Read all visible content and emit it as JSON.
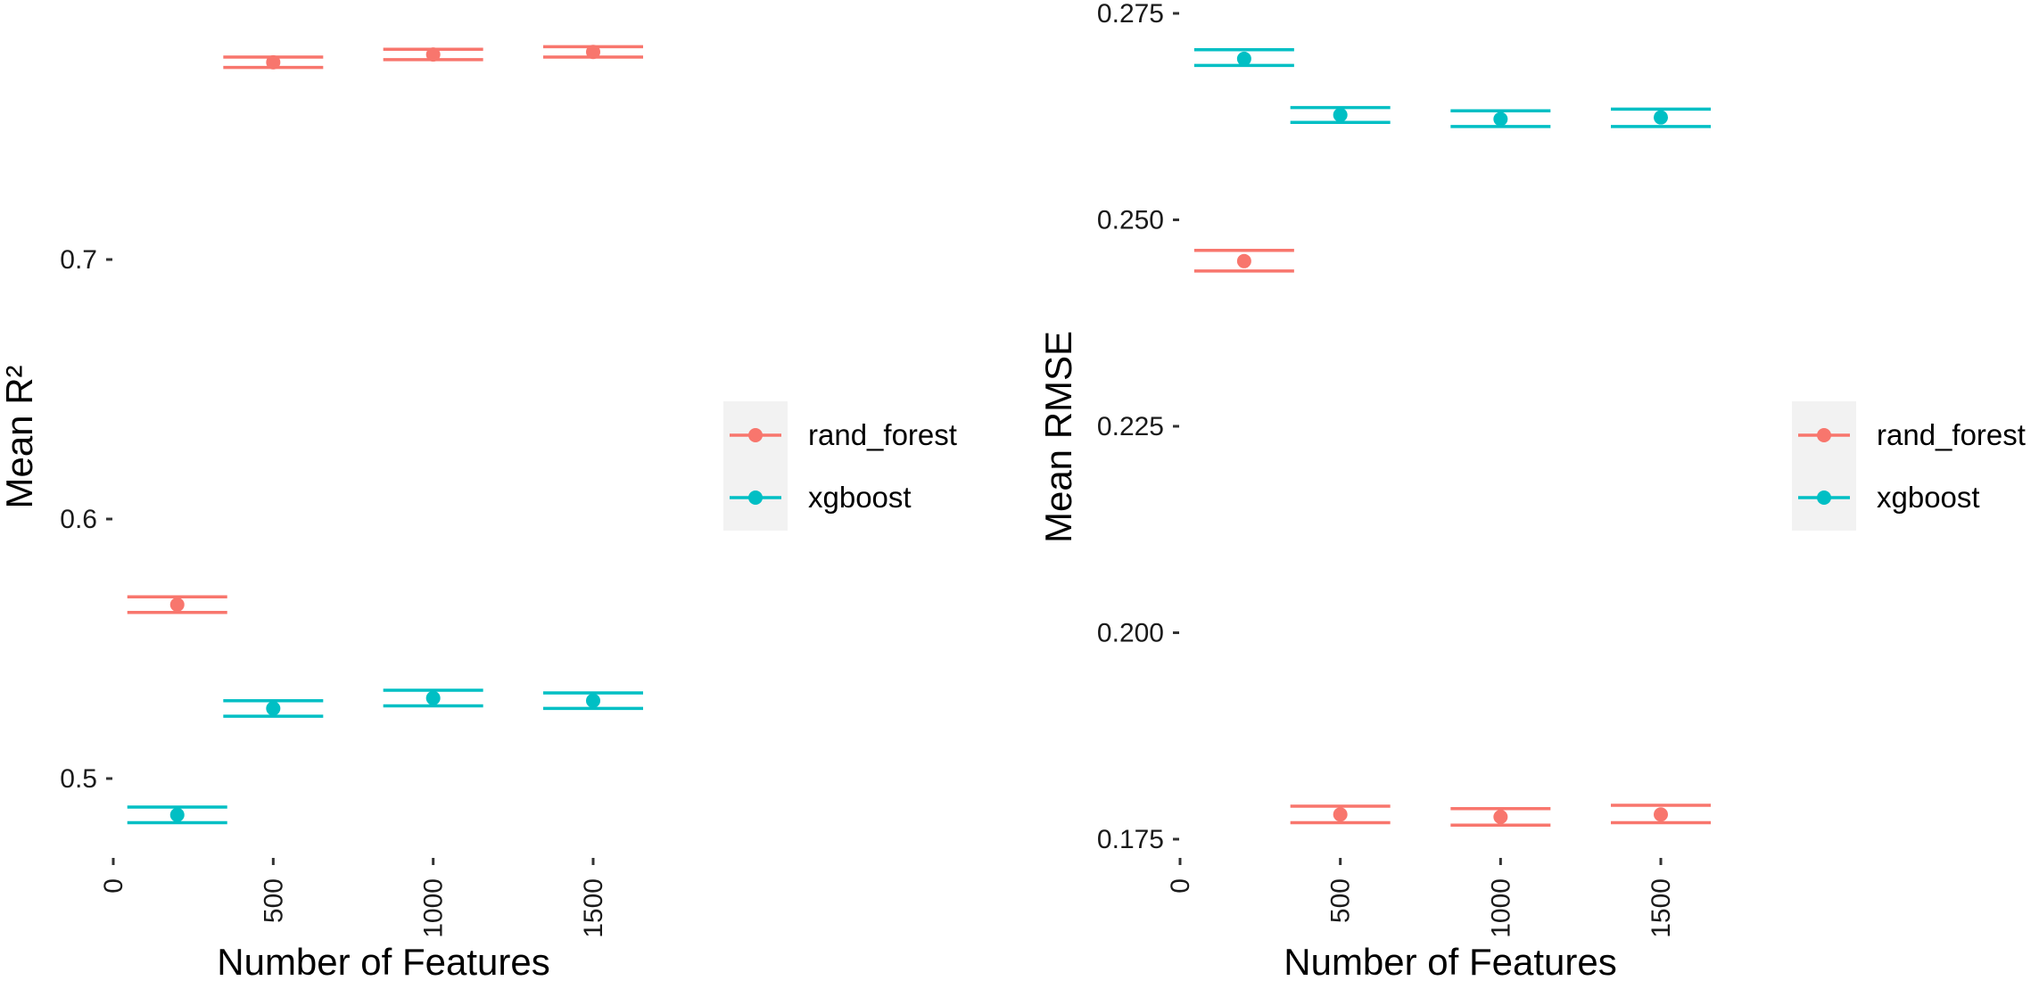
{
  "chart_data": [
    {
      "type": "scatter",
      "title": "",
      "xlabel": "Number of Features",
      "ylabel": "Mean R²",
      "xlim": [
        0,
        1500
      ],
      "xticks": [
        "0",
        "500",
        "1000",
        "1500"
      ],
      "ylim": [
        0.472,
        0.85
      ],
      "yticks": [
        "0.5",
        "0.6",
        "0.7"
      ],
      "grid": false,
      "legend": "right",
      "series": [
        {
          "name": "rand_forest",
          "color": "#F8766D",
          "points": [
            {
              "x": 200,
              "y": 0.567,
              "ymin": 0.564,
              "ymax": 0.57
            },
            {
              "x": 500,
              "y": 0.776,
              "ymin": 0.774,
              "ymax": 0.778
            },
            {
              "x": 1000,
              "y": 0.779,
              "ymin": 0.777,
              "ymax": 0.781
            },
            {
              "x": 1500,
              "y": 0.78,
              "ymin": 0.778,
              "ymax": 0.782
            }
          ]
        },
        {
          "name": "xgboost",
          "color": "#00BFC4",
          "points": [
            {
              "x": 200,
              "y": 0.486,
              "ymin": 0.483,
              "ymax": 0.489
            },
            {
              "x": 500,
              "y": 0.527,
              "ymin": 0.524,
              "ymax": 0.53
            },
            {
              "x": 1000,
              "y": 0.531,
              "ymin": 0.528,
              "ymax": 0.534
            },
            {
              "x": 1500,
              "y": 0.53,
              "ymin": 0.527,
              "ymax": 0.533
            }
          ]
        }
      ]
    },
    {
      "type": "scatter",
      "title": "",
      "xlabel": "Number of Features",
      "ylabel": "Mean RMSE",
      "xlim": [
        0,
        1500
      ],
      "xticks": [
        "0",
        "500",
        "1000",
        "1500"
      ],
      "ylim": [
        0.172,
        0.275
      ],
      "yticks": [
        "0.175",
        "0.200",
        "0.225",
        "0.250",
        "0.275"
      ],
      "grid": false,
      "legend": "right",
      "series": [
        {
          "name": "rand_forest",
          "color": "#F8766D",
          "points": [
            {
              "x": 200,
              "y": 0.245,
              "ymin": 0.2438,
              "ymax": 0.2463
            },
            {
              "x": 500,
              "y": 0.178,
              "ymin": 0.177,
              "ymax": 0.179
            },
            {
              "x": 1000,
              "y": 0.1777,
              "ymin": 0.1767,
              "ymax": 0.1787
            },
            {
              "x": 1500,
              "y": 0.178,
              "ymin": 0.177,
              "ymax": 0.1791
            }
          ]
        },
        {
          "name": "xgboost",
          "color": "#00BFC4",
          "points": [
            {
              "x": 200,
              "y": 0.2695,
              "ymin": 0.2687,
              "ymax": 0.2706
            },
            {
              "x": 500,
              "y": 0.2627,
              "ymin": 0.2618,
              "ymax": 0.2636
            },
            {
              "x": 1000,
              "y": 0.2622,
              "ymin": 0.2613,
              "ymax": 0.2632
            },
            {
              "x": 1500,
              "y": 0.2624,
              "ymin": 0.2613,
              "ymax": 0.2634
            }
          ]
        }
      ]
    }
  ]
}
